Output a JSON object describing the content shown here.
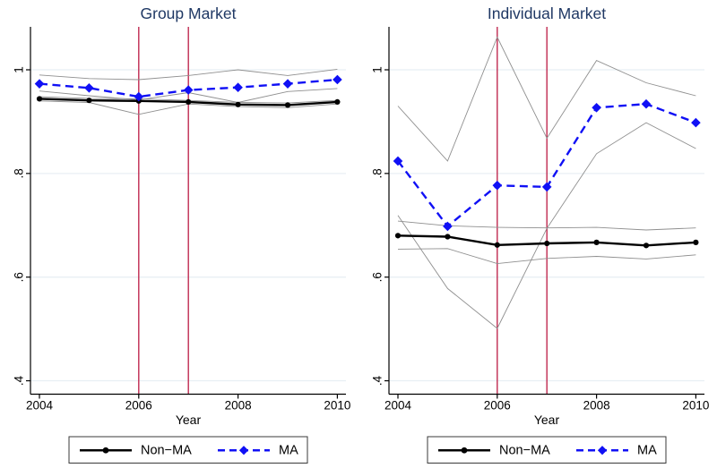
{
  "figure": {
    "background": "#ffffff",
    "colors": {
      "title": "#1f3864",
      "axis": "#000000",
      "tick_label": "#000000",
      "grid": "#e8eff4",
      "vline": "#c02a50",
      "ci_line": "#8f8f8f",
      "non_ma": "#000000",
      "ma": "#1010f5",
      "legend_border": "#3a3a3a",
      "legend_bg": "#ffffff"
    }
  },
  "chart_data": [
    {
      "type": "line",
      "title": "Group Market",
      "xlabel": "Year",
      "x": [
        2004,
        2005,
        2006,
        2007,
        2008,
        2009,
        2010
      ],
      "xticks": [
        2004,
        2006,
        2008,
        2010
      ],
      "yticks": [
        {
          "value": 0.4,
          "label": ".4"
        },
        {
          "value": 0.6,
          "label": ".6"
        },
        {
          "value": 0.8,
          "label": ".8"
        },
        {
          "value": 1.0,
          "label": "1"
        }
      ],
      "ylim": [
        0.37,
        1.08
      ],
      "grid": true,
      "legend_position": "bottom",
      "vlines": [
        2006,
        2007
      ],
      "series": [
        {
          "name": "Non-MA",
          "role": "main",
          "line": "solid",
          "marker": "circle",
          "values": [
            0.944,
            0.941,
            0.94,
            0.938,
            0.933,
            0.932,
            0.938
          ]
        },
        {
          "name": "MA",
          "role": "main",
          "line": "dashed",
          "marker": "diamond",
          "values": [
            0.973,
            0.965,
            0.948,
            0.961,
            0.966,
            0.973,
            0.981
          ]
        },
        {
          "name": "Non-MA CI upper",
          "role": "ci",
          "values": [
            0.948,
            0.945,
            0.944,
            0.941,
            0.937,
            0.936,
            0.941
          ]
        },
        {
          "name": "Non-MA CI lower",
          "role": "ci",
          "values": [
            0.94,
            0.937,
            0.914,
            0.934,
            0.929,
            0.927,
            0.934
          ]
        },
        {
          "name": "MA CI upper",
          "role": "ci",
          "values": [
            0.99,
            0.983,
            0.981,
            0.989,
            1.0,
            0.989,
            1.001
          ]
        },
        {
          "name": "MA CI lower",
          "role": "ci",
          "values": [
            0.959,
            0.95,
            0.942,
            0.956,
            0.937,
            0.958,
            0.964
          ]
        }
      ]
    },
    {
      "type": "line",
      "title": "Individual Market",
      "xlabel": "Year",
      "x": [
        2004,
        2005,
        2006,
        2007,
        2008,
        2009,
        2010
      ],
      "xticks": [
        2004,
        2006,
        2008,
        2010
      ],
      "yticks": [
        {
          "value": 0.4,
          "label": ".4"
        },
        {
          "value": 0.6,
          "label": ".6"
        },
        {
          "value": 0.8,
          "label": ".8"
        },
        {
          "value": 1.0,
          "label": "1"
        }
      ],
      "ylim": [
        0.37,
        1.08
      ],
      "grid": true,
      "legend_position": "bottom",
      "vlines": [
        2006,
        2007
      ],
      "series": [
        {
          "name": "Non-MA",
          "role": "main",
          "line": "solid",
          "marker": "circle",
          "values": [
            0.68,
            0.678,
            0.662,
            0.665,
            0.667,
            0.661,
            0.667
          ]
        },
        {
          "name": "MA",
          "role": "main",
          "line": "dashed",
          "marker": "diamond",
          "values": [
            0.824,
            0.698,
            0.777,
            0.774,
            0.927,
            0.934,
            0.898
          ]
        },
        {
          "name": "Non-MA CI upper",
          "role": "ci",
          "values": [
            0.708,
            0.699,
            0.696,
            0.695,
            0.696,
            0.691,
            0.695
          ]
        },
        {
          "name": "Non-MA CI lower",
          "role": "ci",
          "values": [
            0.654,
            0.655,
            0.626,
            0.636,
            0.64,
            0.635,
            0.643
          ]
        },
        {
          "name": "MA CI upper",
          "role": "ci",
          "values": [
            0.93,
            0.824,
            1.063,
            0.868,
            1.018,
            0.975,
            0.95
          ]
        },
        {
          "name": "MA CI lower",
          "role": "ci",
          "values": [
            0.719,
            0.578,
            0.501,
            0.694,
            0.838,
            0.898,
            0.848
          ]
        }
      ]
    }
  ],
  "legend": {
    "items": [
      {
        "label": "Non−MA",
        "series": "Non-MA",
        "line": "solid",
        "marker": "circle"
      },
      {
        "label": "MA",
        "series": "MA",
        "line": "dashed",
        "marker": "diamond"
      }
    ]
  }
}
